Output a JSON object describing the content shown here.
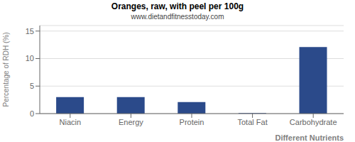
{
  "chart_data": {
    "type": "bar",
    "title": "Oranges, raw, with peel per 100g",
    "subtitle": "www.dietandfitnesstoday.com",
    "xlabel": "Different Nutrients",
    "ylabel": "Percentage of RDH (%)",
    "categories": [
      "Niacin",
      "Energy",
      "Protein",
      "Total Fat",
      "Carbohydrate"
    ],
    "values": [
      3.0,
      3.0,
      2.1,
      0.1,
      12.1
    ],
    "color": "#2b4a8a",
    "ylim": [
      0,
      16
    ],
    "yticks": [
      0,
      5,
      10,
      15
    ],
    "grid": true
  }
}
